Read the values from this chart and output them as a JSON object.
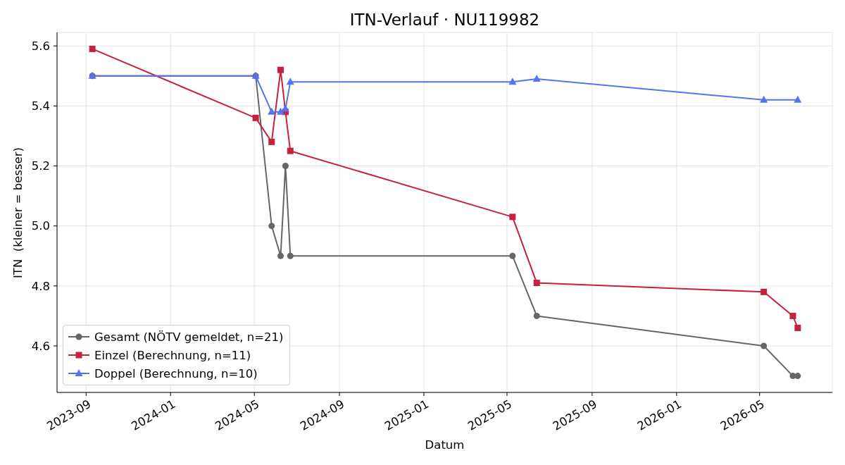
{
  "chart_data": {
    "type": "line",
    "title": "ITN-Verlauf · NU119982",
    "xlabel": "Datum",
    "ylabel": "ITN  (kleiner = besser)",
    "series": [
      {
        "name": "Gesamt (NÖTV gemeldet, n=21)",
        "color": "#666666",
        "marker": "circle",
        "x": [
          "2023-09-10",
          "2024-05-03",
          "2024-05-26",
          "2024-06-08",
          "2024-06-15",
          "2024-06-22",
          "2025-05-09",
          "2025-06-13",
          "2026-05-07",
          "2026-06-18",
          "2026-06-25"
        ],
        "values": [
          5.5,
          5.5,
          5.0,
          4.9,
          5.2,
          4.9,
          4.9,
          4.7,
          4.6,
          4.5,
          4.5
        ]
      },
      {
        "name": "Einzel (Berechnung, n=11)",
        "color": "#c8203f",
        "marker": "square",
        "x": [
          "2023-09-10",
          "2024-05-03",
          "2024-05-26",
          "2024-06-08",
          "2024-06-15",
          "2024-06-22",
          "2025-05-09",
          "2025-06-13",
          "2026-05-07",
          "2026-06-18",
          "2026-06-25"
        ],
        "values": [
          5.59,
          5.36,
          5.28,
          5.52,
          5.38,
          5.25,
          5.03,
          4.81,
          4.78,
          4.7,
          4.66
        ]
      },
      {
        "name": "Doppel (Berechnung, n=10)",
        "color": "#5473ee",
        "marker": "triangle",
        "x": [
          "2023-09-10",
          "2024-05-03",
          "2024-05-26",
          "2024-06-08",
          "2024-06-15",
          "2024-06-22",
          "2025-05-09",
          "2025-06-13",
          "2026-05-07",
          "2026-06-25"
        ],
        "values": [
          5.5,
          5.5,
          5.38,
          5.38,
          5.39,
          5.48,
          5.48,
          5.49,
          5.42,
          5.42
        ]
      }
    ],
    "xlim": [
      "2023-07-21",
      "2026-08-14"
    ],
    "xticks": [
      "2023-09",
      "2024-01",
      "2024-05",
      "2024-09",
      "2025-01",
      "2025-05",
      "2025-09",
      "2026-01",
      "2026-05"
    ],
    "ylim": [
      4.445,
      5.645
    ],
    "yticks": [
      {
        "value": 4.6,
        "label": "4.6"
      },
      {
        "value": 4.8,
        "label": "4.8"
      },
      {
        "value": 5.0,
        "label": "5.0"
      },
      {
        "value": 5.2,
        "label": "5.2"
      },
      {
        "value": 5.4,
        "label": "5.4"
      },
      {
        "value": 5.6,
        "label": "5.6"
      }
    ],
    "grid": true,
    "legend": "bottom left"
  }
}
